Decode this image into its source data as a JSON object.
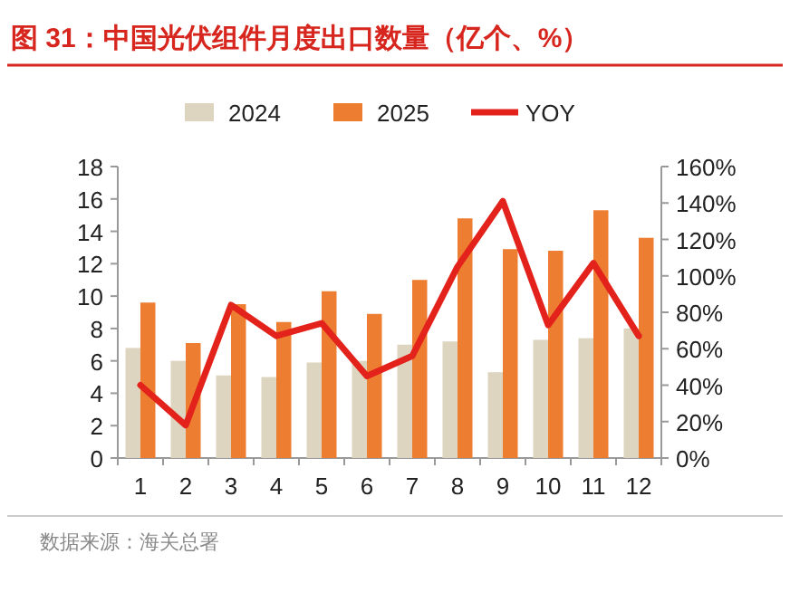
{
  "chart_data": {
    "type": "bar",
    "title": "图 31：中国光伏组件月度出口数量（亿个、%）",
    "categories": [
      "1",
      "2",
      "3",
      "4",
      "5",
      "6",
      "7",
      "8",
      "9",
      "10",
      "11",
      "12"
    ],
    "series": [
      {
        "name": "2024",
        "color": "#ddd5bf",
        "values": [
          6.8,
          6.0,
          5.1,
          5.0,
          5.9,
          6.0,
          7.0,
          7.2,
          5.3,
          7.3,
          7.4,
          8.0
        ]
      },
      {
        "name": "2025",
        "color": "#ed7d31",
        "values": [
          9.6,
          7.1,
          9.5,
          8.4,
          10.3,
          8.9,
          11.0,
          14.8,
          12.9,
          12.8,
          15.3,
          13.6
        ]
      },
      {
        "name": "YOY",
        "type": "line",
        "axis": "y2",
        "color": "#e3221b",
        "values": [
          40,
          18,
          84,
          67,
          74,
          45,
          56,
          105,
          141,
          73,
          107,
          67
        ]
      }
    ],
    "ylim": [
      0,
      18
    ],
    "yticks": [
      0,
      2,
      4,
      6,
      8,
      10,
      12,
      14,
      16,
      18
    ],
    "y2lim": [
      0,
      160
    ],
    "y2ticks": [
      {
        "value": 0,
        "label": "0%"
      },
      {
        "value": 20,
        "label": "20%"
      },
      {
        "value": 40,
        "label": "40%"
      },
      {
        "value": 60,
        "label": "60%"
      },
      {
        "value": 80,
        "label": "80%"
      },
      {
        "value": 100,
        "label": "100%"
      },
      {
        "value": 120,
        "label": "120%"
      },
      {
        "value": 140,
        "label": "140%"
      },
      {
        "value": 160,
        "label": "160%"
      }
    ],
    "legend": "top",
    "grid": false,
    "annotations": [
      "数据来源：海关总署"
    ]
  }
}
